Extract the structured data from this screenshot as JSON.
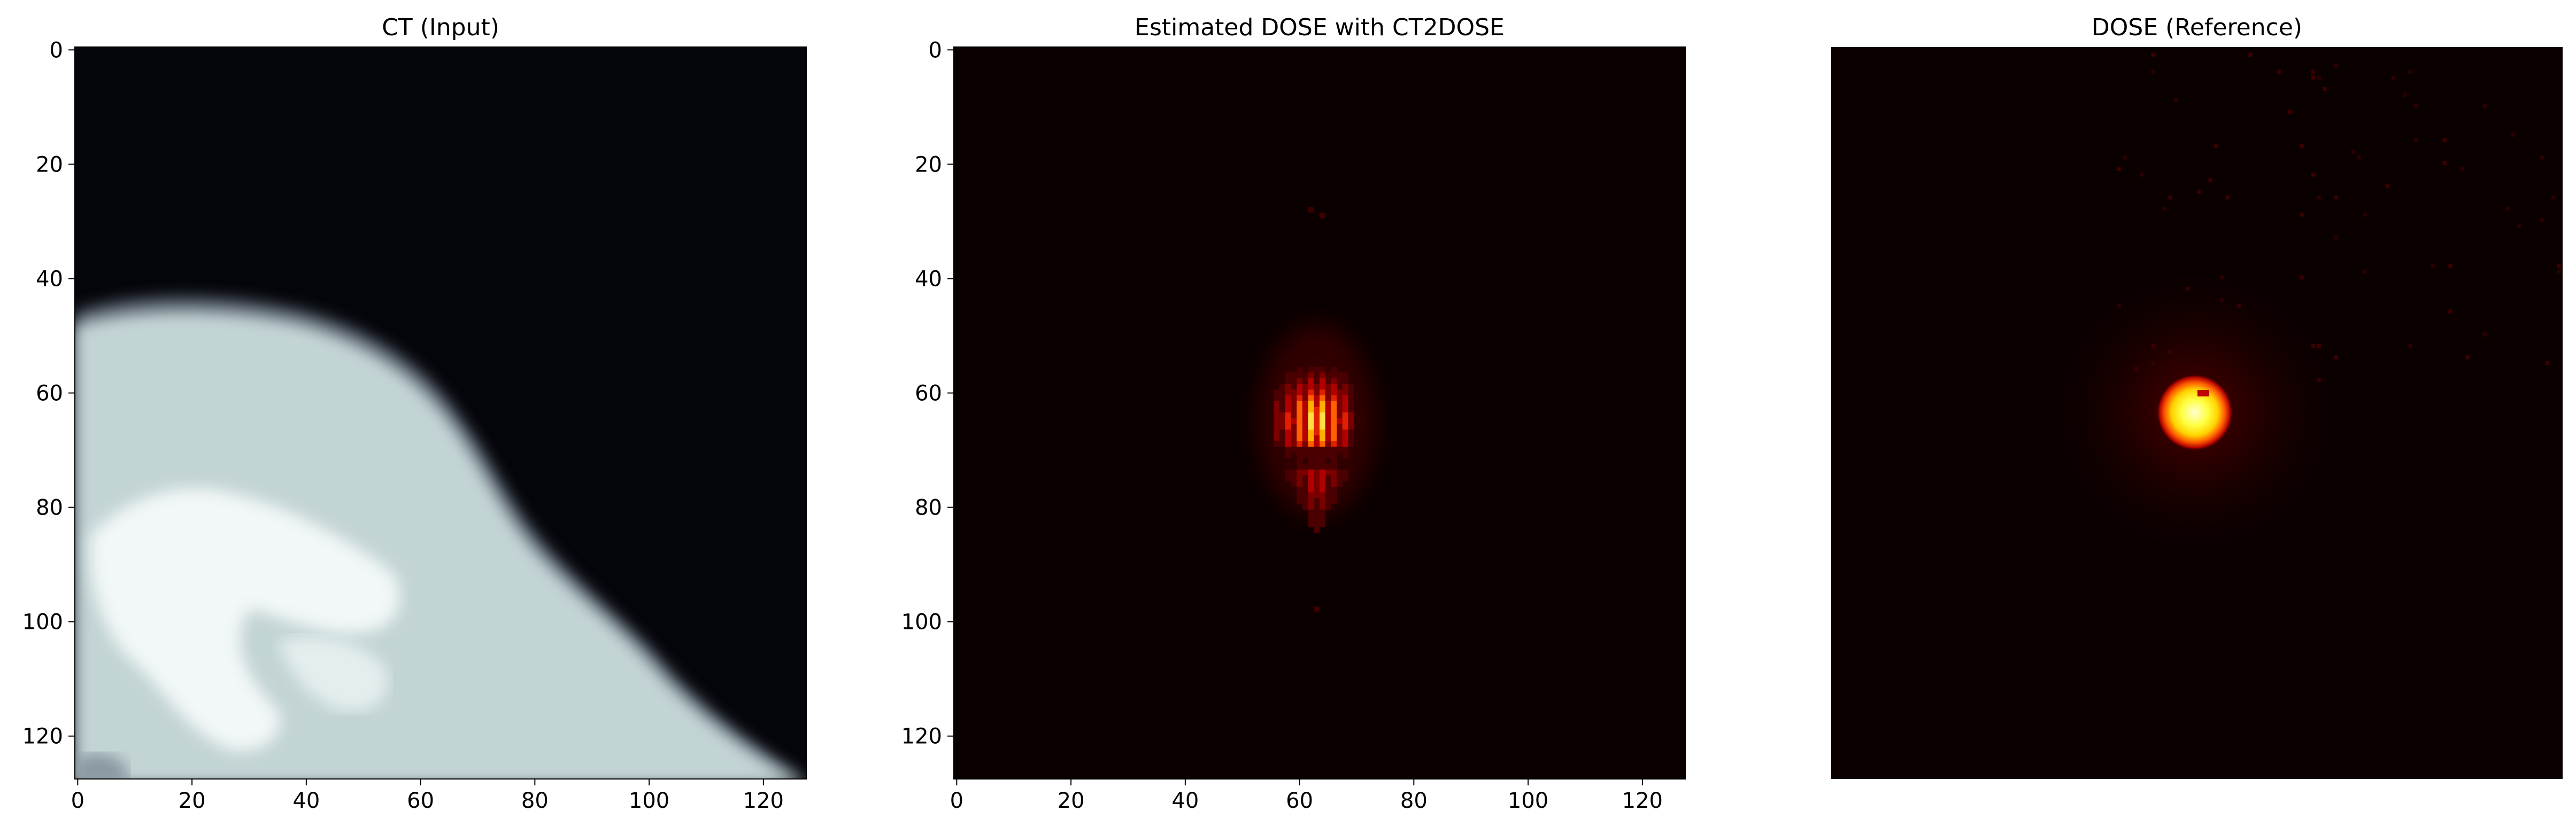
{
  "chart_data": [
    {
      "type": "heatmap",
      "title": "CT (Input)",
      "colormap": "bone",
      "xlim": [
        0,
        127
      ],
      "ylim": [
        127,
        0
      ],
      "xticks": [
        "0",
        "20",
        "40",
        "60",
        "80",
        "100",
        "120"
      ],
      "yticks": [
        "0",
        "20",
        "40",
        "60",
        "80",
        "100",
        "120"
      ],
      "axes_visible": true
    },
    {
      "type": "heatmap",
      "title": "Estimated DOSE with CT2DOSE",
      "colormap": "hot",
      "xlim": [
        0,
        127
      ],
      "ylim": [
        127,
        0
      ],
      "xticks": [
        "0",
        "20",
        "40",
        "60",
        "80",
        "100",
        "120"
      ],
      "yticks": [
        "0",
        "20",
        "40",
        "60",
        "80",
        "100",
        "120"
      ],
      "axes_visible": true,
      "hotspot": {
        "x": 63,
        "y": 65
      }
    },
    {
      "type": "heatmap",
      "title": "DOSE (Reference)",
      "colormap": "hot",
      "xlim": [
        0,
        127
      ],
      "ylim": [
        127,
        0
      ],
      "axes_visible": false,
      "hotspot": {
        "x": 63,
        "y": 63
      }
    }
  ]
}
